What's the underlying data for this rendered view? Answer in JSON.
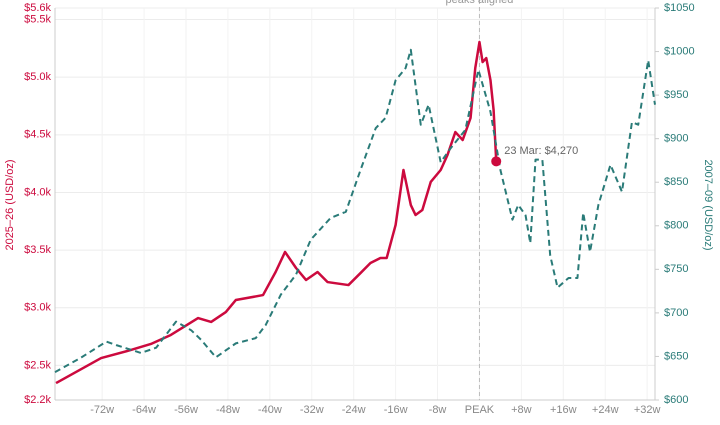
{
  "chart_data": {
    "type": "line",
    "xlim": [
      -81,
      33.5
    ],
    "xticks": [
      {
        "value": -72,
        "label": "-72w"
      },
      {
        "value": -64,
        "label": "-64w"
      },
      {
        "value": -56,
        "label": "-56w"
      },
      {
        "value": -48,
        "label": "-48w"
      },
      {
        "value": -40,
        "label": "-40w"
      },
      {
        "value": -32,
        "label": "-32w"
      },
      {
        "value": -24,
        "label": "-24w"
      },
      {
        "value": -16,
        "label": "-16w"
      },
      {
        "value": -8,
        "label": "-8w"
      },
      {
        "value": 0,
        "label": "PEAK"
      },
      {
        "value": 8,
        "label": "+8w"
      },
      {
        "value": 16,
        "label": "+16w"
      },
      {
        "value": 24,
        "label": "+24w"
      },
      {
        "value": 32,
        "label": "+32w"
      }
    ],
    "ylim": [
      2200,
      5600
    ],
    "yticks": [
      {
        "value": 2200,
        "label": "$2.2k"
      },
      {
        "value": 2500,
        "label": "$2.5k"
      },
      {
        "value": 3000,
        "label": "$3.0k"
      },
      {
        "value": 3500,
        "label": "$3.5k"
      },
      {
        "value": 4000,
        "label": "$4.0k"
      },
      {
        "value": 4500,
        "label": "$4.5k"
      },
      {
        "value": 5000,
        "label": "$5.0k"
      },
      {
        "value": 5500,
        "label": "$5.5k"
      },
      {
        "value": 5600,
        "label": "$5.6k"
      }
    ],
    "y2lim": [
      600,
      1050
    ],
    "y2ticks": [
      {
        "value": 600,
        "label": "$600"
      },
      {
        "value": 650,
        "label": "$650"
      },
      {
        "value": 700,
        "label": "$700"
      },
      {
        "value": 750,
        "label": "$750"
      },
      {
        "value": 800,
        "label": "$800"
      },
      {
        "value": 850,
        "label": "$850"
      },
      {
        "value": 900,
        "label": "$900"
      },
      {
        "value": 950,
        "label": "$950"
      },
      {
        "value": 1000,
        "label": "$1000"
      },
      {
        "value": 1050,
        "label": "$1050"
      }
    ],
    "ylabel": "2025–26 (USD/oz)",
    "y2label": "2007–09 (USD/oz)",
    "grid": true,
    "series": [
      {
        "name": "2025–26",
        "color": "#cc0a3e",
        "axis": "y",
        "dash": false,
        "x": [
          -80.8,
          -72.2,
          -66.5,
          -62.7,
          -58.9,
          -53.7,
          -51.2,
          -48.4,
          -46.5,
          -41.3,
          -38.9,
          -37.1,
          -35,
          -33.1,
          -30.9,
          -29,
          -25,
          -22.7,
          -20.8,
          -18.9,
          -17.7,
          -16,
          -14.5,
          -13.1,
          -12.2,
          -10.9,
          -9.3,
          -7.4,
          -6.1,
          -4.6,
          -3.2,
          -1.7,
          -0.8,
          0,
          0.6,
          1.3,
          2.1,
          2.7,
          3.2
        ],
        "values": [
          2347,
          2564,
          2634,
          2686,
          2764,
          2911,
          2877,
          2963,
          3067,
          3110,
          3310,
          3484,
          3345,
          3241,
          3310,
          3223,
          3197,
          3301,
          3388,
          3432,
          3432,
          3718,
          4195,
          3891,
          3805,
          3848,
          4091,
          4195,
          4325,
          4524,
          4455,
          4646,
          5079,
          5305,
          5131,
          5166,
          4975,
          4715,
          4273
        ]
      },
      {
        "name": "2007–09",
        "color": "#2a7b78",
        "axis": "y2",
        "dash": true,
        "x": [
          -81,
          -76.2,
          -71.2,
          -69.3,
          -64.6,
          -61.7,
          -57.9,
          -55,
          -53.1,
          -50.3,
          -46.5,
          -42.7,
          -40.8,
          -37.9,
          -35,
          -32.2,
          -28.4,
          -25.5,
          -22.7,
          -19.8,
          -17.9,
          -16,
          -14.1,
          -13.1,
          -11.2,
          -9.7,
          -7.4,
          -5.5,
          -2.7,
          -0.2,
          2.1,
          4,
          6.3,
          7.4,
          8.8,
          9.7,
          10.7,
          12,
          13.5,
          14.9,
          17,
          18.7,
          19.8,
          21.1,
          22.7,
          25,
          27.2,
          29.1,
          30.3,
          32.2,
          33.5
        ],
        "values": [
          632,
          648,
          667,
          663,
          654,
          660,
          690,
          680,
          669,
          649,
          665,
          671,
          686,
          721,
          744,
          784,
          809,
          816,
          864,
          912,
          924,
          967,
          981,
          1002,
          916,
          939,
          873,
          889,
          910,
          979,
          931,
          864,
          807,
          824,
          812,
          780,
          876,
          876,
          766,
          729,
          740,
          740,
          815,
          770,
          824,
          870,
          839,
          919,
          916,
          990,
          939
        ]
      }
    ],
    "annotations": [
      {
        "text": "peaks aligned",
        "x": 0
      },
      {
        "text": "23 Mar: $4,270",
        "x": 3.2,
        "y": 4270
      }
    ]
  }
}
